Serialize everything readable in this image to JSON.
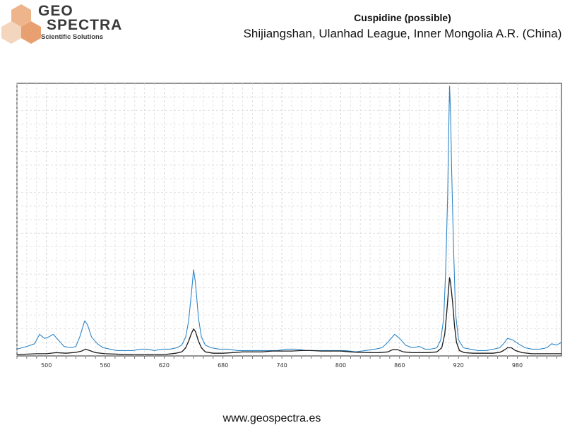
{
  "logo": {
    "line1": "Geo",
    "line2": "Spectra",
    "tagline": "Scientific Solutions",
    "colors": {
      "hex_light": "#f4d6bf",
      "hex_mid": "#eeb58c",
      "hex_dark": "#e8a070"
    }
  },
  "header": {
    "title": "Cuspidine (possible)",
    "subtitle": "Shijiangshan, Ulanhad League, Inner Mongolia A.R. (China)"
  },
  "footer": {
    "url": "www.geospectra.es"
  },
  "chart_data": {
    "type": "line",
    "title": "",
    "xlabel": "",
    "ylabel": "",
    "xlim": [
      470,
      1025
    ],
    "ylim": [
      0,
      100
    ],
    "x_ticks": [
      500,
      560,
      620,
      680,
      740,
      800,
      860,
      920,
      980
    ],
    "y_ticks": [],
    "grid": true,
    "legend": "none",
    "series": [
      {
        "color": "#2e86c8",
        "points": [
          [
            470,
            2.5
          ],
          [
            480,
            3.5
          ],
          [
            488,
            4.5
          ],
          [
            493,
            8
          ],
          [
            498,
            6.5
          ],
          [
            502,
            7
          ],
          [
            507,
            8
          ],
          [
            512,
            6
          ],
          [
            518,
            3.5
          ],
          [
            525,
            3
          ],
          [
            530,
            3.5
          ],
          [
            534,
            7
          ],
          [
            539,
            13
          ],
          [
            542,
            11.5
          ],
          [
            546,
            7
          ],
          [
            552,
            4.5
          ],
          [
            558,
            3
          ],
          [
            565,
            2.5
          ],
          [
            572,
            2
          ],
          [
            580,
            2
          ],
          [
            588,
            2
          ],
          [
            596,
            2.5
          ],
          [
            603,
            2.5
          ],
          [
            610,
            2
          ],
          [
            618,
            2.5
          ],
          [
            626,
            2.5
          ],
          [
            633,
            3
          ],
          [
            638,
            4
          ],
          [
            642,
            7
          ],
          [
            645,
            13
          ],
          [
            648,
            24
          ],
          [
            650,
            32
          ],
          [
            652,
            27
          ],
          [
            655,
            14
          ],
          [
            658,
            7
          ],
          [
            662,
            4
          ],
          [
            668,
            3
          ],
          [
            676,
            2.5
          ],
          [
            685,
            2.5
          ],
          [
            695,
            2
          ],
          [
            705,
            2
          ],
          [
            715,
            2
          ],
          [
            725,
            2
          ],
          [
            735,
            2
          ],
          [
            745,
            2.5
          ],
          [
            755,
            2.5
          ],
          [
            765,
            2
          ],
          [
            775,
            2
          ],
          [
            785,
            2
          ],
          [
            795,
            2
          ],
          [
            805,
            2
          ],
          [
            815,
            1.5
          ],
          [
            825,
            2
          ],
          [
            835,
            2.5
          ],
          [
            842,
            3
          ],
          [
            848,
            5
          ],
          [
            855,
            8
          ],
          [
            860,
            6.5
          ],
          [
            866,
            4
          ],
          [
            873,
            3
          ],
          [
            880,
            3.5
          ],
          [
            886,
            2.5
          ],
          [
            892,
            2.5
          ],
          [
            898,
            3
          ],
          [
            902,
            6
          ],
          [
            905,
            14
          ],
          [
            907,
            32
          ],
          [
            909,
            60
          ],
          [
            910,
            82
          ],
          [
            911,
            100
          ],
          [
            912,
            90
          ],
          [
            913,
            70
          ],
          [
            915,
            40
          ],
          [
            917,
            16
          ],
          [
            920,
            6
          ],
          [
            925,
            3
          ],
          [
            932,
            2.5
          ],
          [
            940,
            2
          ],
          [
            948,
            2
          ],
          [
            956,
            2.5
          ],
          [
            962,
            3
          ],
          [
            966,
            4.5
          ],
          [
            970,
            6.5
          ],
          [
            975,
            6
          ],
          [
            981,
            4.5
          ],
          [
            988,
            3
          ],
          [
            995,
            2.5
          ],
          [
            1003,
            2.5
          ],
          [
            1010,
            3
          ],
          [
            1015,
            4.5
          ],
          [
            1020,
            4
          ],
          [
            1025,
            5
          ]
        ]
      },
      {
        "color": "#1a1a1a",
        "points": [
          [
            470,
            0.5
          ],
          [
            490,
            0.8
          ],
          [
            500,
            0.8
          ],
          [
            510,
            1.2
          ],
          [
            520,
            1
          ],
          [
            530,
            1.3
          ],
          [
            536,
            1.8
          ],
          [
            540,
            2.5
          ],
          [
            544,
            2
          ],
          [
            550,
            1.2
          ],
          [
            560,
            0.8
          ],
          [
            575,
            0.6
          ],
          [
            590,
            0.5
          ],
          [
            605,
            0.5
          ],
          [
            620,
            0.5
          ],
          [
            632,
            1
          ],
          [
            638,
            1.5
          ],
          [
            642,
            3
          ],
          [
            645,
            5.5
          ],
          [
            648,
            8.5
          ],
          [
            650,
            10
          ],
          [
            652,
            9
          ],
          [
            655,
            5.5
          ],
          [
            658,
            3
          ],
          [
            662,
            1.5
          ],
          [
            670,
            1
          ],
          [
            680,
            1
          ],
          [
            690,
            1.2
          ],
          [
            700,
            1.5
          ],
          [
            710,
            1.5
          ],
          [
            720,
            1.5
          ],
          [
            730,
            1.8
          ],
          [
            740,
            1.8
          ],
          [
            750,
            1.8
          ],
          [
            760,
            2
          ],
          [
            770,
            2
          ],
          [
            780,
            1.8
          ],
          [
            790,
            1.8
          ],
          [
            800,
            1.8
          ],
          [
            810,
            1.5
          ],
          [
            820,
            1.3
          ],
          [
            830,
            1.2
          ],
          [
            840,
            1.2
          ],
          [
            848,
            1.5
          ],
          [
            853,
            2.3
          ],
          [
            858,
            2.3
          ],
          [
            864,
            1.5
          ],
          [
            872,
            1.2
          ],
          [
            880,
            1.2
          ],
          [
            890,
            1.2
          ],
          [
            898,
            1.5
          ],
          [
            903,
            3
          ],
          [
            906,
            8
          ],
          [
            908,
            16
          ],
          [
            910,
            25
          ],
          [
            911,
            29
          ],
          [
            912,
            27
          ],
          [
            914,
            20
          ],
          [
            916,
            11
          ],
          [
            918,
            5
          ],
          [
            921,
            2
          ],
          [
            926,
            1.2
          ],
          [
            935,
            1
          ],
          [
            945,
            1
          ],
          [
            955,
            1
          ],
          [
            962,
            1.3
          ],
          [
            966,
            2
          ],
          [
            970,
            3
          ],
          [
            974,
            3
          ],
          [
            978,
            2
          ],
          [
            985,
            1.2
          ],
          [
            995,
            0.8
          ],
          [
            1005,
            0.8
          ],
          [
            1015,
            0.8
          ],
          [
            1025,
            0.8
          ]
        ]
      }
    ]
  }
}
